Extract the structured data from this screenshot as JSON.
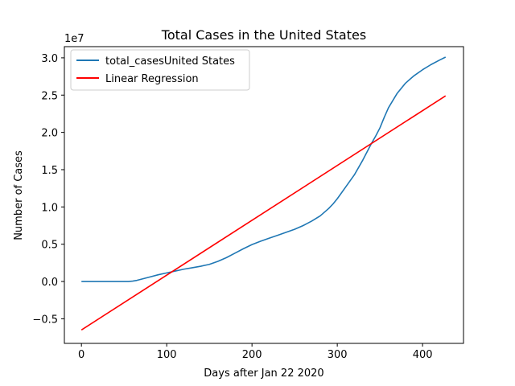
{
  "chart_data": {
    "type": "line",
    "title": "Total Cases in the United States",
    "xlabel": "Days after Jan 22 2020",
    "ylabel": "Number of Cases",
    "y_offset_text": "1e7",
    "y_scale": 10000000,
    "xlim": [
      -20,
      448
    ],
    "ylim": [
      -0.83,
      3.15
    ],
    "x_ticks": [
      0,
      100,
      200,
      300,
      400
    ],
    "x_tick_labels": [
      "0",
      "100",
      "200",
      "300",
      "400"
    ],
    "y_ticks": [
      -0.5,
      0.0,
      0.5,
      1.0,
      1.5,
      2.0,
      2.5,
      3.0
    ],
    "y_tick_labels": [
      "−0.5",
      "0.0",
      "0.5",
      "1.0",
      "1.5",
      "2.0",
      "2.5",
      "3.0"
    ],
    "grid": false,
    "legend_position": "top-left",
    "series": [
      {
        "name": "total_casesUnited States",
        "color": "#1f77b4",
        "x": [
          0,
          20,
          40,
          55,
          60,
          65,
          70,
          80,
          90,
          100,
          110,
          120,
          130,
          140,
          150,
          155,
          160,
          170,
          180,
          190,
          200,
          210,
          220,
          230,
          240,
          250,
          260,
          270,
          280,
          285,
          290,
          295,
          300,
          310,
          320,
          330,
          340,
          345,
          350,
          355,
          360,
          370,
          380,
          390,
          400,
          410,
          420,
          427
        ],
        "y": [
          0.0,
          0.0,
          0.0,
          0.0,
          0.005,
          0.015,
          0.03,
          0.06,
          0.09,
          0.115,
          0.14,
          0.165,
          0.185,
          0.205,
          0.23,
          0.25,
          0.27,
          0.32,
          0.38,
          0.44,
          0.495,
          0.54,
          0.58,
          0.62,
          0.66,
          0.7,
          0.75,
          0.81,
          0.88,
          0.93,
          0.98,
          1.04,
          1.11,
          1.27,
          1.43,
          1.63,
          1.85,
          1.95,
          2.06,
          2.2,
          2.33,
          2.52,
          2.66,
          2.76,
          2.84,
          2.91,
          2.97,
          3.01
        ]
      },
      {
        "name": "Linear Regression",
        "color": "#ff0000",
        "x": [
          0,
          427
        ],
        "y": [
          -0.65,
          2.49
        ]
      }
    ]
  }
}
